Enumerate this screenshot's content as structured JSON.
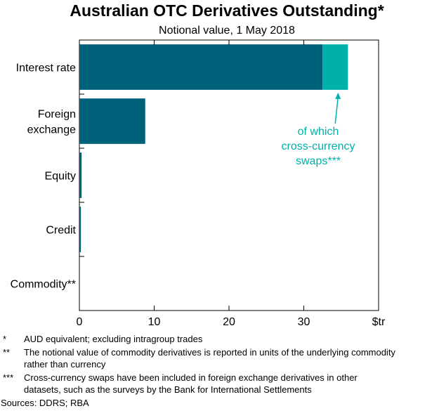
{
  "chart_data": {
    "type": "bar",
    "orientation": "horizontal",
    "stacked": true,
    "title": "Australian OTC Derivatives Outstanding*",
    "subtitle": "Notional value, 1 May 2018",
    "categories": [
      "Interest rate",
      "Foreign\nexchange",
      "Equity",
      "Credit",
      "Commodity**"
    ],
    "series": [
      {
        "values": [
          32.5,
          8.8,
          0.3,
          0.2,
          0.0
        ]
      },
      {
        "values": [
          3.4,
          0,
          0,
          0,
          0
        ]
      }
    ],
    "xlim": [
      0,
      40
    ],
    "xticks": [
      0,
      10,
      20,
      30
    ],
    "unit": "$tr",
    "grid": false,
    "colors": [
      "#00627a",
      "#00b1a9"
    ],
    "annotation": {
      "lines": [
        "of which",
        "cross-currency",
        "swaps***"
      ],
      "color": "#00b1a9"
    }
  },
  "notes": [
    {
      "symbol": "*",
      "text": "AUD equivalent; excluding intragroup trades"
    },
    {
      "symbol": "**",
      "text": "The notional value of commodity derivatives is reported in units of the underlying commodity rather than currency"
    },
    {
      "symbol": "***",
      "text": "Cross-currency swaps have been included in foreign exchange derivatives in other datasets, such as the surveys by the Bank for International Settlements"
    }
  ],
  "sources": "Sources:   DDRS; RBA"
}
